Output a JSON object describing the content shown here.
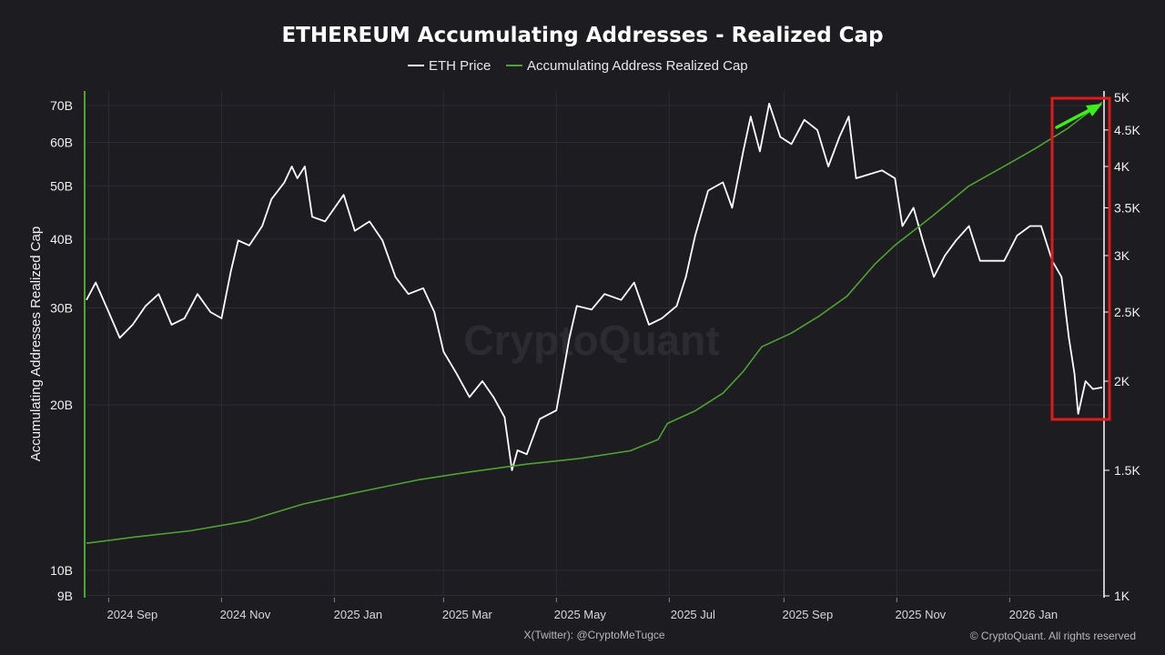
{
  "chart_data": {
    "type": "line",
    "title": "ETHEREUM Accumulating Addresses - Realized Cap",
    "legend": [
      "ETH Price",
      "Accumulating Address Realized Cap"
    ],
    "legend_position": "top-center",
    "ylabel_left": "Accumulating Addresses Realized Cap",
    "yscale_left": "log",
    "yscale_right": "log",
    "ylim_left": [
      9000000000,
      75000000000
    ],
    "ylim_right": [
      1000,
      5000
    ],
    "yticks_left": [
      {
        "label": "70B",
        "value": 70000000000
      },
      {
        "label": "60B",
        "value": 60000000000
      },
      {
        "label": "50B",
        "value": 50000000000
      },
      {
        "label": "40B",
        "value": 40000000000
      },
      {
        "label": "30B",
        "value": 30000000000
      },
      {
        "label": "20B",
        "value": 20000000000
      },
      {
        "label": "10B",
        "value": 10000000000
      },
      {
        "label": "9B",
        "value": 9000000000
      }
    ],
    "yticks_right": [
      {
        "label": "5K",
        "value": 5000
      },
      {
        "label": "4.5K",
        "value": 4500
      },
      {
        "label": "4K",
        "value": 4000
      },
      {
        "label": "3.5K",
        "value": 3500
      },
      {
        "label": "3K",
        "value": 3000
      },
      {
        "label": "2.5K",
        "value": 2500
      },
      {
        "label": "2K",
        "value": 2000
      },
      {
        "label": "1.5K",
        "value": 1500
      },
      {
        "label": "1K",
        "value": 1000
      }
    ],
    "xlim": [
      "2024-08-20",
      "2026-02-20"
    ],
    "xticks": [
      {
        "label": "2024 Sep",
        "date": "2024-09-01"
      },
      {
        "label": "2024 Nov",
        "date": "2024-11-01"
      },
      {
        "label": "2025 Jan",
        "date": "2025-01-01"
      },
      {
        "label": "2025 Mar",
        "date": "2025-03-01"
      },
      {
        "label": "2025 May",
        "date": "2025-05-01"
      },
      {
        "label": "2025 Jul",
        "date": "2025-07-01"
      },
      {
        "label": "2025 Sep",
        "date": "2025-09-01"
      },
      {
        "label": "2025 Nov",
        "date": "2025-11-01"
      },
      {
        "label": "2026 Jan",
        "date": "2026-01-01"
      }
    ],
    "grid": true,
    "series": [
      {
        "name": "ETH Price",
        "axis": "right",
        "color": "#ffffff",
        "points": [
          [
            "2024-08-20",
            2600
          ],
          [
            "2024-08-25",
            2750
          ],
          [
            "2024-09-01",
            2500
          ],
          [
            "2024-09-07",
            2300
          ],
          [
            "2024-09-14",
            2400
          ],
          [
            "2024-09-21",
            2550
          ],
          [
            "2024-09-28",
            2650
          ],
          [
            "2024-10-05",
            2400
          ],
          [
            "2024-10-12",
            2450
          ],
          [
            "2024-10-19",
            2650
          ],
          [
            "2024-10-26",
            2500
          ],
          [
            "2024-11-01",
            2450
          ],
          [
            "2024-11-06",
            2850
          ],
          [
            "2024-11-10",
            3150
          ],
          [
            "2024-11-16",
            3100
          ],
          [
            "2024-11-23",
            3300
          ],
          [
            "2024-11-28",
            3600
          ],
          [
            "2024-12-05",
            3800
          ],
          [
            "2024-12-09",
            4000
          ],
          [
            "2024-12-12",
            3850
          ],
          [
            "2024-12-16",
            4000
          ],
          [
            "2024-12-20",
            3400
          ],
          [
            "2024-12-27",
            3350
          ],
          [
            "2025-01-06",
            3650
          ],
          [
            "2025-01-12",
            3250
          ],
          [
            "2025-01-20",
            3350
          ],
          [
            "2025-01-27",
            3150
          ],
          [
            "2025-02-03",
            2800
          ],
          [
            "2025-02-10",
            2650
          ],
          [
            "2025-02-18",
            2700
          ],
          [
            "2025-02-24",
            2500
          ],
          [
            "2025-03-01",
            2200
          ],
          [
            "2025-03-08",
            2050
          ],
          [
            "2025-03-15",
            1900
          ],
          [
            "2025-03-22",
            2000
          ],
          [
            "2025-03-28",
            1900
          ],
          [
            "2025-04-03",
            1780
          ],
          [
            "2025-04-07",
            1500
          ],
          [
            "2025-04-10",
            1600
          ],
          [
            "2025-04-15",
            1580
          ],
          [
            "2025-04-22",
            1770
          ],
          [
            "2025-05-01",
            1820
          ],
          [
            "2025-05-08",
            2300
          ],
          [
            "2025-05-12",
            2550
          ],
          [
            "2025-05-20",
            2520
          ],
          [
            "2025-05-27",
            2650
          ],
          [
            "2025-06-05",
            2600
          ],
          [
            "2025-06-12",
            2750
          ],
          [
            "2025-06-20",
            2400
          ],
          [
            "2025-06-27",
            2450
          ],
          [
            "2025-07-05",
            2550
          ],
          [
            "2025-07-10",
            2800
          ],
          [
            "2025-07-15",
            3200
          ],
          [
            "2025-07-22",
            3700
          ],
          [
            "2025-07-30",
            3800
          ],
          [
            "2025-08-04",
            3500
          ],
          [
            "2025-08-10",
            4200
          ],
          [
            "2025-08-14",
            4700
          ],
          [
            "2025-08-19",
            4200
          ],
          [
            "2025-08-24",
            4900
          ],
          [
            "2025-08-30",
            4400
          ],
          [
            "2025-09-05",
            4300
          ],
          [
            "2025-09-12",
            4650
          ],
          [
            "2025-09-19",
            4500
          ],
          [
            "2025-09-25",
            4000
          ],
          [
            "2025-10-01",
            4400
          ],
          [
            "2025-10-06",
            4700
          ],
          [
            "2025-10-10",
            3850
          ],
          [
            "2025-10-17",
            3900
          ],
          [
            "2025-10-24",
            3950
          ],
          [
            "2025-10-31",
            3850
          ],
          [
            "2025-11-04",
            3300
          ],
          [
            "2025-11-10",
            3500
          ],
          [
            "2025-11-15",
            3150
          ],
          [
            "2025-11-21",
            2800
          ],
          [
            "2025-11-27",
            3000
          ],
          [
            "2025-12-03",
            3150
          ],
          [
            "2025-12-10",
            3300
          ],
          [
            "2025-12-16",
            2950
          ],
          [
            "2025-12-22",
            2950
          ],
          [
            "2025-12-29",
            2950
          ],
          [
            "2026-01-05",
            3200
          ],
          [
            "2026-01-12",
            3300
          ],
          [
            "2026-01-18",
            3300
          ],
          [
            "2026-01-24",
            2950
          ],
          [
            "2026-01-29",
            2800
          ],
          [
            "2026-02-02",
            2300
          ],
          [
            "2026-02-05",
            2050
          ],
          [
            "2026-02-07",
            1800
          ],
          [
            "2026-02-11",
            2000
          ],
          [
            "2026-02-15",
            1950
          ],
          [
            "2026-02-20",
            1960
          ]
        ]
      },
      {
        "name": "Accumulating Address Realized Cap",
        "axis": "left",
        "color": "#4fa233",
        "points": [
          [
            "2024-08-20",
            11200000000
          ],
          [
            "2024-09-15",
            11500000000
          ],
          [
            "2024-10-15",
            11800000000
          ],
          [
            "2024-11-15",
            12300000000
          ],
          [
            "2024-12-15",
            13200000000
          ],
          [
            "2025-01-15",
            13900000000
          ],
          [
            "2025-02-15",
            14600000000
          ],
          [
            "2025-03-15",
            15100000000
          ],
          [
            "2025-04-15",
            15600000000
          ],
          [
            "2025-05-15",
            16000000000
          ],
          [
            "2025-06-10",
            16500000000
          ],
          [
            "2025-06-25",
            17300000000
          ],
          [
            "2025-06-30",
            18500000000
          ],
          [
            "2025-07-15",
            19500000000
          ],
          [
            "2025-07-30",
            21000000000
          ],
          [
            "2025-08-10",
            23000000000
          ],
          [
            "2025-08-20",
            25500000000
          ],
          [
            "2025-09-05",
            27000000000
          ],
          [
            "2025-09-20",
            29000000000
          ],
          [
            "2025-10-05",
            31500000000
          ],
          [
            "2025-10-20",
            36000000000
          ],
          [
            "2025-10-31",
            39000000000
          ],
          [
            "2025-11-20",
            44000000000
          ],
          [
            "2025-12-10",
            50000000000
          ],
          [
            "2026-01-01",
            55000000000
          ],
          [
            "2026-01-15",
            58500000000
          ],
          [
            "2026-02-01",
            63500000000
          ],
          [
            "2026-02-10",
            67000000000
          ],
          [
            "2026-02-20",
            71000000000
          ]
        ]
      }
    ],
    "annotations": [
      "red box highlighting Feb 2026 segment",
      "green up arrow"
    ]
  },
  "watermark": "CryptoQuant",
  "footer_left": "X(Twitter): @CryptoMeTugce",
  "footer_right": "© CryptoQuant. All rights reserved",
  "colors": {
    "background": "#1d1c21",
    "price_line": "#ffffff",
    "realized_cap_line": "#4fa233",
    "highlight_box": "#e0191b",
    "arrow": "#3bef1a",
    "grid": "#2d2c32"
  }
}
